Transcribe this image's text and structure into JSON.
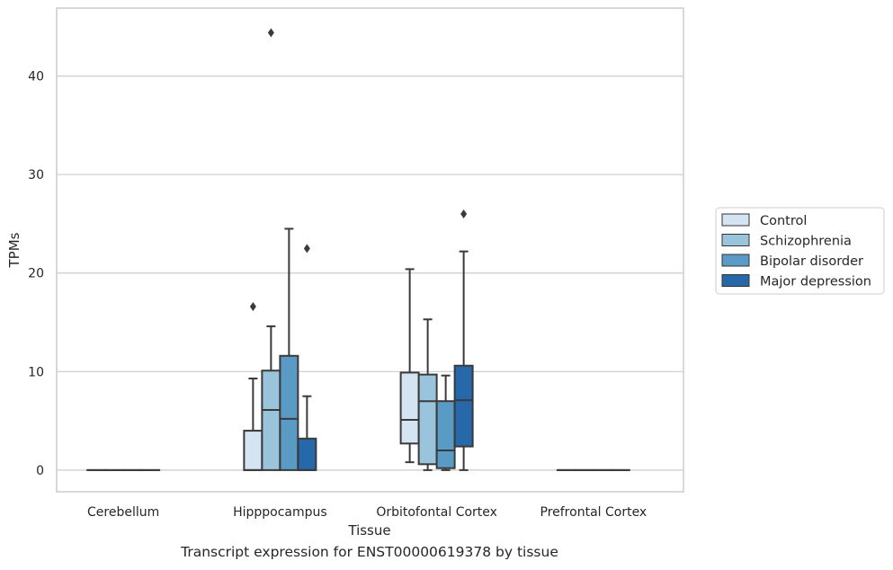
{
  "caption": "Transcript expression for ENST00000619378 by tissue",
  "chart_data": {
    "type": "box",
    "xlabel": "Tissue",
    "ylabel": "TPMs",
    "ylim": [
      -2.2,
      46.9
    ],
    "yticks": [
      0,
      10,
      20,
      30,
      40
    ],
    "grid": true,
    "legend_position": "right",
    "categories": [
      "Cerebellum",
      "Hipppocampus",
      "Orbitofontal Cortex",
      "Prefrontal Cortex"
    ],
    "series": [
      {
        "name": "Control",
        "color": "#d5e4f2",
        "boxes": [
          {
            "min": 0,
            "q1": 0,
            "median": 0,
            "q3": 0,
            "max": 0,
            "outliers": []
          },
          {
            "min": 0,
            "q1": 0,
            "median": 0,
            "q3": 4.0,
            "max": 9.3,
            "outliers": [
              16.6
            ]
          },
          {
            "min": 0.8,
            "q1": 2.7,
            "median": 5.1,
            "q3": 9.9,
            "max": 20.4,
            "outliers": []
          },
          {
            "min": 0,
            "q1": 0,
            "median": 0,
            "q3": 0,
            "max": 0,
            "outliers": []
          }
        ]
      },
      {
        "name": "Schizophrenia",
        "color": "#9ac3dc",
        "boxes": [
          {
            "min": 0,
            "q1": 0,
            "median": 0,
            "q3": 0,
            "max": 0,
            "outliers": []
          },
          {
            "min": 0,
            "q1": 0,
            "median": 6.1,
            "q3": 10.1,
            "max": 14.6,
            "outliers": [
              44.4
            ]
          },
          {
            "min": 0,
            "q1": 0.6,
            "median": 7.0,
            "q3": 9.7,
            "max": 15.3,
            "outliers": []
          },
          {
            "min": 0,
            "q1": 0,
            "median": 0,
            "q3": 0,
            "max": 0,
            "outliers": []
          }
        ]
      },
      {
        "name": "Bipolar disorder",
        "color": "#5a9bc6",
        "boxes": [
          {
            "min": 0,
            "q1": 0,
            "median": 0,
            "q3": 0,
            "max": 0,
            "outliers": []
          },
          {
            "min": 0,
            "q1": 0,
            "median": 5.2,
            "q3": 11.6,
            "max": 24.5,
            "outliers": []
          },
          {
            "min": 0,
            "q1": 0.2,
            "median": 2.0,
            "q3": 7.0,
            "max": 9.6,
            "outliers": []
          },
          {
            "min": 0,
            "q1": 0,
            "median": 0,
            "q3": 0,
            "max": 0,
            "outliers": []
          }
        ]
      },
      {
        "name": "Major depression",
        "color": "#2668a9",
        "boxes": [
          {
            "min": 0,
            "q1": 0,
            "median": 0,
            "q3": 0,
            "max": 0,
            "outliers": []
          },
          {
            "min": 0,
            "q1": 0,
            "median": 0,
            "q3": 3.2,
            "max": 7.5,
            "outliers": [
              22.5
            ]
          },
          {
            "min": 0,
            "q1": 2.4,
            "median": 7.1,
            "q3": 10.6,
            "max": 22.2,
            "outliers": [
              26.0
            ]
          },
          {
            "min": 0,
            "q1": 0,
            "median": 0,
            "q3": 0,
            "max": 0,
            "outliers": []
          }
        ]
      }
    ]
  }
}
